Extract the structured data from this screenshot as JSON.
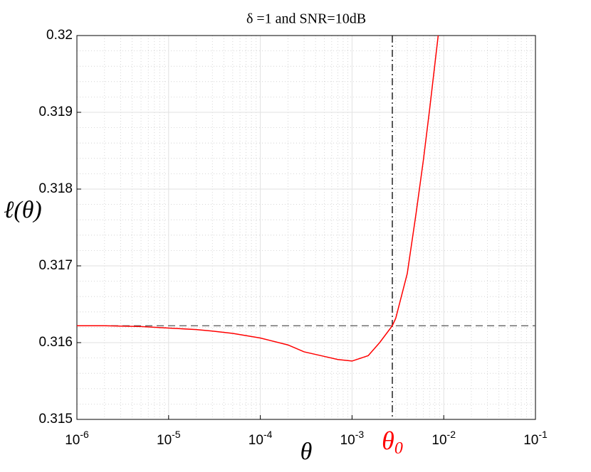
{
  "chart_data": {
    "type": "line",
    "title": "δ =1 and SNR=10dB",
    "x_label": "θ",
    "y_label": "ℓ(θ)",
    "x": [
      1e-06,
      2e-06,
      5e-06,
      1e-05,
      2e-05,
      3e-05,
      5e-05,
      0.0001,
      0.0002,
      0.0003,
      0.0005,
      0.0007,
      0.001,
      0.0015,
      0.002,
      0.00275,
      0.003,
      0.004,
      0.005,
      0.006,
      0.007,
      0.0087
    ],
    "values": [
      0.31622,
      0.31622,
      0.31621,
      0.31619,
      0.31617,
      0.31615,
      0.31612,
      0.31606,
      0.31597,
      0.31588,
      0.31582,
      0.31578,
      0.31576,
      0.31583,
      0.316,
      0.31622,
      0.31632,
      0.3169,
      0.31769,
      0.31838,
      0.31903,
      0.32
    ],
    "color": "#ff0000",
    "xscale": "log",
    "grid": true,
    "xlim": [
      1e-06,
      0.1
    ],
    "ylim": [
      0.315,
      0.32
    ],
    "xticks": [
      {
        "value": 1e-06,
        "label": "10-6"
      },
      {
        "value": 1e-05,
        "label": "10-5"
      },
      {
        "value": 0.0001,
        "label": "10-4"
      },
      {
        "value": 0.001,
        "label": "10-3"
      },
      {
        "value": 0.01,
        "label": "10-2"
      },
      {
        "value": 0.1,
        "label": "10-1"
      }
    ],
    "yticks": [
      0.315,
      0.316,
      0.317,
      0.318,
      0.319,
      0.32
    ],
    "hline": {
      "value": 0.31622,
      "color": "#555555"
    },
    "vline": {
      "value": 0.00275,
      "label": "θ0",
      "color": "#ff0000"
    }
  }
}
